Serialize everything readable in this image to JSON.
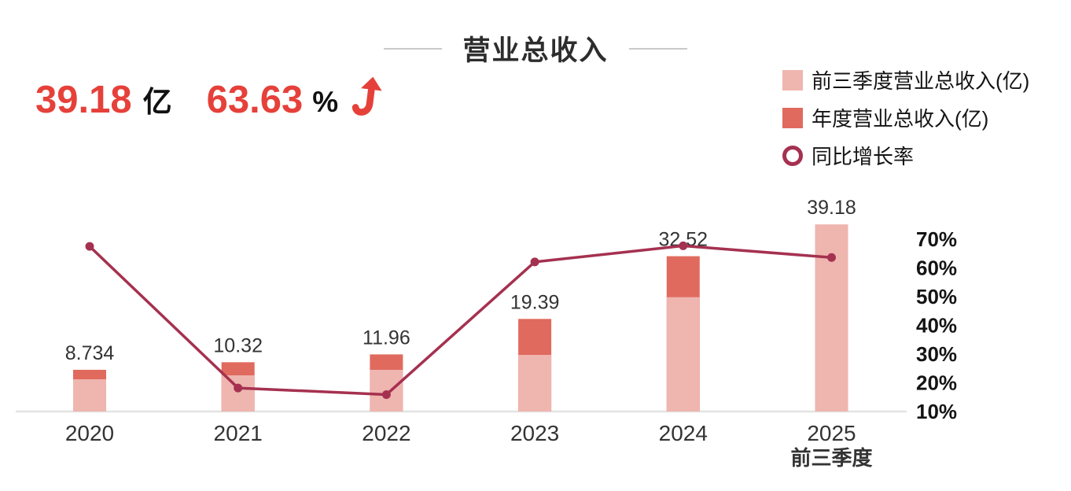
{
  "title": "营业总收入",
  "header": {
    "revenue_value": "39.18",
    "revenue_unit": "亿",
    "growth_value": "63.63",
    "growth_unit": "%",
    "trend_icon": "up-arrow-icon",
    "accent_color": "#e5413a"
  },
  "legend": [
    {
      "label": "前三季度营业总收入(亿)",
      "swatch": "square",
      "color": "#efb5af"
    },
    {
      "label": "年度营业总收入(亿)",
      "swatch": "square",
      "color": "#e06a5e"
    },
    {
      "label": "同比增长率",
      "swatch": "ring",
      "color": "#a53150"
    }
  ],
  "chart_data": {
    "type": "bar+line",
    "categories": [
      "2020",
      "2021",
      "2022",
      "2023",
      "2024",
      "2025"
    ],
    "x_sublabels": [
      "",
      "",
      "",
      "",
      "",
      "前三季度"
    ],
    "bar_labels": [
      "8.734",
      "10.32",
      "11.96",
      "19.39",
      "32.52",
      "39.18"
    ],
    "series": [
      {
        "name": "前三季度营业总收入(亿)",
        "type": "bar",
        "color": "#efb5af",
        "values": [
          6.75,
          7.58,
          8.73,
          11.86,
          23.94,
          39.18
        ]
      },
      {
        "name": "年度营业总收入(亿)",
        "type": "bar",
        "color": "#e06a5e",
        "values": [
          8.734,
          10.32,
          11.96,
          19.39,
          32.52,
          null
        ]
      },
      {
        "name": "同比增长率",
        "type": "line",
        "color": "#a53150",
        "unit": "%",
        "values": [
          67.5,
          18.2,
          15.9,
          62.1,
          67.7,
          63.63
        ]
      }
    ],
    "right_axis": {
      "ticks": [
        "70%",
        "60%",
        "50%",
        "40%",
        "30%",
        "20%",
        "10%"
      ],
      "min": 10,
      "max": 70
    },
    "left_axis_visible": false,
    "grid": false,
    "baseline_color": "#e3e3e3",
    "label_color": "#333333",
    "legend_position": "top-right"
  }
}
